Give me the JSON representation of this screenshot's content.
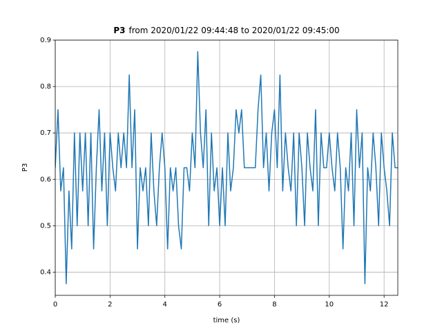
{
  "chart_data": {
    "type": "line",
    "title_bold": "P3",
    "title": "from 2020/01/22 09:44:48 to 2020/01/22 09:45:00",
    "xlabel": "time (s)",
    "ylabel": "P3",
    "color": "#1f77b4",
    "grid": true,
    "xlim": [
      0,
      12.5
    ],
    "xticks": [
      0,
      2,
      4,
      6,
      8,
      10,
      12
    ],
    "ylim": [
      0.35,
      0.9
    ],
    "yticks": [
      0.4,
      0.5,
      0.6,
      0.7,
      0.8,
      0.9
    ],
    "x": [
      0,
      0.1,
      0.2,
      0.3,
      0.4,
      0.5,
      0.6,
      0.7,
      0.8,
      0.9,
      1.0,
      1.1,
      1.2,
      1.3,
      1.4,
      1.5,
      1.6,
      1.7,
      1.8,
      1.9,
      2.0,
      2.1,
      2.2,
      2.3,
      2.4,
      2.5,
      2.6,
      2.7,
      2.8,
      2.9,
      3.0,
      3.1,
      3.2,
      3.3,
      3.4,
      3.5,
      3.6,
      3.7,
      3.8,
      3.9,
      4.0,
      4.1,
      4.2,
      4.3,
      4.4,
      4.5,
      4.6,
      4.7,
      4.8,
      4.9,
      5.0,
      5.1,
      5.2,
      5.3,
      5.4,
      5.5,
      5.6,
      5.7,
      5.8,
      5.9,
      6.0,
      6.1,
      6.2,
      6.3,
      6.4,
      6.5,
      6.6,
      6.7,
      6.8,
      6.9,
      7.0,
      7.1,
      7.2,
      7.3,
      7.4,
      7.5,
      7.6,
      7.7,
      7.8,
      7.9,
      8.0,
      8.1,
      8.2,
      8.3,
      8.4,
      8.5,
      8.6,
      8.7,
      8.8,
      8.9,
      9.0,
      9.1,
      9.2,
      9.3,
      9.4,
      9.5,
      9.6,
      9.7,
      9.8,
      9.9,
      10.0,
      10.1,
      10.2,
      10.3,
      10.4,
      10.5,
      10.6,
      10.7,
      10.8,
      10.9,
      11.0,
      11.1,
      11.2,
      11.3,
      11.4,
      11.5,
      11.6,
      11.7,
      11.8,
      11.9,
      12.0,
      12.1,
      12.2,
      12.3,
      12.4,
      12.5
    ],
    "values": [
      0.625,
      0.75,
      0.575,
      0.625,
      0.375,
      0.575,
      0.45,
      0.7,
      0.5,
      0.7,
      0.575,
      0.7,
      0.5,
      0.7,
      0.45,
      0.625,
      0.75,
      0.575,
      0.7,
      0.5,
      0.7,
      0.625,
      0.575,
      0.7,
      0.625,
      0.7,
      0.625,
      0.825,
      0.625,
      0.75,
      0.45,
      0.625,
      0.575,
      0.625,
      0.5,
      0.7,
      0.575,
      0.5,
      0.625,
      0.7,
      0.625,
      0.45,
      0.625,
      0.575,
      0.625,
      0.5,
      0.45,
      0.625,
      0.625,
      0.575,
      0.7,
      0.625,
      0.875,
      0.7,
      0.625,
      0.75,
      0.5,
      0.7,
      0.575,
      0.625,
      0.5,
      0.625,
      0.5,
      0.7,
      0.575,
      0.625,
      0.75,
      0.7,
      0.75,
      0.625,
      0.625,
      0.625,
      0.625,
      0.625,
      0.75,
      0.825,
      0.625,
      0.7,
      0.575,
      0.7,
      0.75,
      0.625,
      0.825,
      0.575,
      0.7,
      0.625,
      0.575,
      0.7,
      0.5,
      0.7,
      0.625,
      0.5,
      0.7,
      0.625,
      0.575,
      0.75,
      0.5,
      0.7,
      0.625,
      0.625,
      0.7,
      0.625,
      0.575,
      0.7,
      0.625,
      0.45,
      0.625,
      0.575,
      0.7,
      0.5,
      0.75,
      0.625,
      0.7,
      0.375,
      0.625,
      0.575,
      0.7,
      0.625,
      0.5,
      0.7,
      0.625,
      0.575,
      0.5,
      0.7,
      0.625,
      0.625
    ]
  }
}
